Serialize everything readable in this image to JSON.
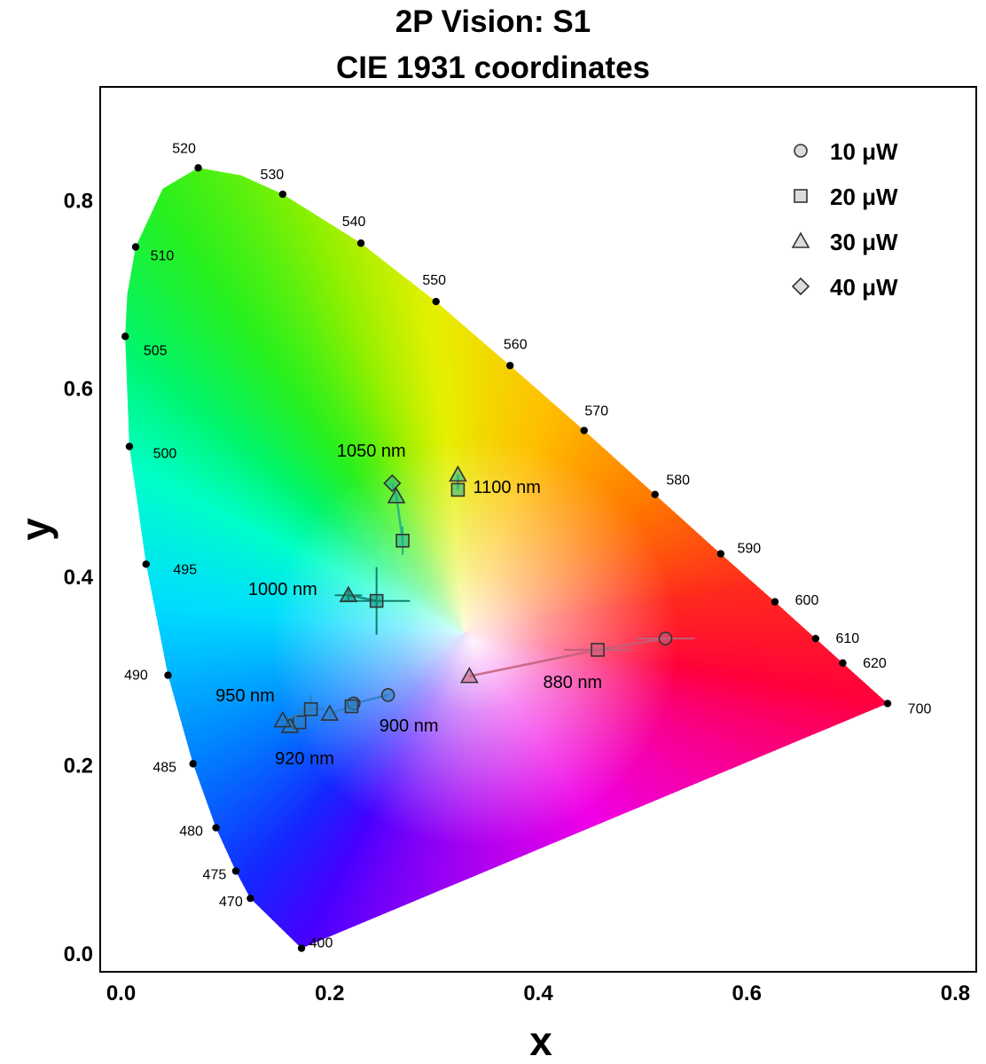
{
  "chart_data": {
    "type": "scatter",
    "title": "2P Vision: S1",
    "subtitle": "CIE 1931 coordinates",
    "xlabel": "x",
    "ylabel": "y",
    "xlim": [
      -0.02,
      0.82
    ],
    "ylim": [
      -0.02,
      0.92
    ],
    "xticks": [
      {
        "value": 0.0,
        "label": "0.0"
      },
      {
        "value": 0.2,
        "label": "0.2"
      },
      {
        "value": 0.4,
        "label": "0.4"
      },
      {
        "value": 0.6,
        "label": "0.6"
      },
      {
        "value": 0.8,
        "label": "0.8"
      }
    ],
    "yticks": [
      {
        "value": 0.0,
        "label": "0.0"
      },
      {
        "value": 0.2,
        "label": "0.2"
      },
      {
        "value": 0.4,
        "label": "0.4"
      },
      {
        "value": 0.6,
        "label": "0.6"
      },
      {
        "value": 0.8,
        "label": "0.8"
      }
    ],
    "grid": false,
    "legend_position": "top-right",
    "spectral_locus": [
      {
        "wl": "400",
        "x": 0.173,
        "y": 0.005
      },
      {
        "wl": "470",
        "x": 0.124,
        "y": 0.058
      },
      {
        "wl": "475",
        "x": 0.11,
        "y": 0.087
      },
      {
        "wl": "480",
        "x": 0.091,
        "y": 0.133
      },
      {
        "wl": "485",
        "x": 0.069,
        "y": 0.201
      },
      {
        "wl": "490",
        "x": 0.045,
        "y": 0.295
      },
      {
        "wl": "495",
        "x": 0.024,
        "y": 0.413
      },
      {
        "wl": "500",
        "x": 0.008,
        "y": 0.538
      },
      {
        "wl": "505",
        "x": 0.004,
        "y": 0.655
      },
      {
        "wl": "510",
        "x": 0.014,
        "y": 0.75
      },
      {
        "wl": "520",
        "x": 0.074,
        "y": 0.834
      },
      {
        "wl": "530",
        "x": 0.155,
        "y": 0.806
      },
      {
        "wl": "540",
        "x": 0.23,
        "y": 0.754
      },
      {
        "wl": "550",
        "x": 0.302,
        "y": 0.692
      },
      {
        "wl": "560",
        "x": 0.373,
        "y": 0.624
      },
      {
        "wl": "570",
        "x": 0.444,
        "y": 0.555
      },
      {
        "wl": "580",
        "x": 0.512,
        "y": 0.487
      },
      {
        "wl": "590",
        "x": 0.575,
        "y": 0.424
      },
      {
        "wl": "600",
        "x": 0.627,
        "y": 0.373
      },
      {
        "wl": "610",
        "x": 0.666,
        "y": 0.334
      },
      {
        "wl": "620",
        "x": 0.692,
        "y": 0.308
      },
      {
        "wl": "700",
        "x": 0.735,
        "y": 0.265
      }
    ],
    "legend": [
      {
        "marker": "circle",
        "label": "10 μW"
      },
      {
        "marker": "square",
        "label": "20 μW"
      },
      {
        "marker": "triangle",
        "label": "30 μW"
      },
      {
        "marker": "diamond",
        "label": "40 μW"
      }
    ],
    "series": [
      {
        "label": "880 nm",
        "color": "#c0607a",
        "points": [
          {
            "power": "10 μW",
            "marker": "circle",
            "x": 0.522,
            "y": 0.334,
            "xerr": 0.028,
            "yerr": 0.0
          },
          {
            "power": "20 μW",
            "marker": "square",
            "x": 0.457,
            "y": 0.322,
            "xerr": 0.032,
            "yerr": 0.0
          },
          {
            "power": "30 μW",
            "marker": "triangle",
            "x": 0.334,
            "y": 0.294,
            "xerr": 0.0,
            "yerr": 0.0
          }
        ]
      },
      {
        "label": "900 nm",
        "color": "#2e7fc0",
        "points": [
          {
            "power": "10 μW",
            "marker": "circle",
            "x": 0.256,
            "y": 0.274,
            "xerr": 0.0,
            "yerr": 0.0
          },
          {
            "power": "10 μW",
            "marker": "circle",
            "x": 0.223,
            "y": 0.265,
            "xerr": 0.0,
            "yerr": 0.0
          },
          {
            "power": "20 μW",
            "marker": "square",
            "x": 0.221,
            "y": 0.262,
            "xerr": 0.0,
            "yerr": 0.0
          },
          {
            "power": "30 μW",
            "marker": "triangle",
            "x": 0.2,
            "y": 0.254,
            "xerr": 0.0,
            "yerr": 0.0
          }
        ]
      },
      {
        "label": "920 nm",
        "color": "#2e7fc0",
        "points": [
          {
            "power": "20 μW",
            "marker": "square",
            "x": 0.171,
            "y": 0.245,
            "xerr": 0.0,
            "yerr": 0.0
          },
          {
            "power": "30 μW",
            "marker": "triangle",
            "x": 0.162,
            "y": 0.241,
            "xerr": 0.0,
            "yerr": 0.0
          }
        ]
      },
      {
        "label": "950 nm",
        "color": "#2e7fc0",
        "points": [
          {
            "power": "20 μW",
            "marker": "square",
            "x": 0.182,
            "y": 0.259,
            "xerr": 0.013,
            "yerr": 0.015
          },
          {
            "power": "30 μW",
            "marker": "triangle",
            "x": 0.155,
            "y": 0.247,
            "xerr": 0.0,
            "yerr": 0.0
          }
        ]
      },
      {
        "label": "1000 nm",
        "color": "#0e8070",
        "points": [
          {
            "power": "20 μW",
            "marker": "square",
            "x": 0.245,
            "y": 0.374,
            "xerr": 0.032,
            "yerr": 0.036
          },
          {
            "power": "30 μW",
            "marker": "triangle",
            "x": 0.218,
            "y": 0.38,
            "xerr": 0.013,
            "yerr": 0.006
          }
        ]
      },
      {
        "label": "1050 nm",
        "color": "#1fb08a",
        "points": [
          {
            "power": "40 μW",
            "marker": "diamond",
            "x": 0.26,
            "y": 0.499,
            "xerr": 0.0,
            "yerr": 0.0
          },
          {
            "power": "30 μW",
            "marker": "triangle",
            "x": 0.264,
            "y": 0.485,
            "xerr": 0.0,
            "yerr": 0.0
          },
          {
            "power": "20 μW",
            "marker": "square",
            "x": 0.27,
            "y": 0.438,
            "xerr": 0.0,
            "yerr": 0.015
          }
        ]
      },
      {
        "label": "1100 nm",
        "color": "#1fb08a",
        "points": [
          {
            "power": "30 μW",
            "marker": "triangle",
            "x": 0.323,
            "y": 0.508,
            "xerr": 0.0,
            "yerr": 0.0
          },
          {
            "power": "20 μW",
            "marker": "square",
            "x": 0.323,
            "y": 0.492,
            "xerr": 0.0,
            "yerr": 0.0
          }
        ]
      }
    ]
  }
}
